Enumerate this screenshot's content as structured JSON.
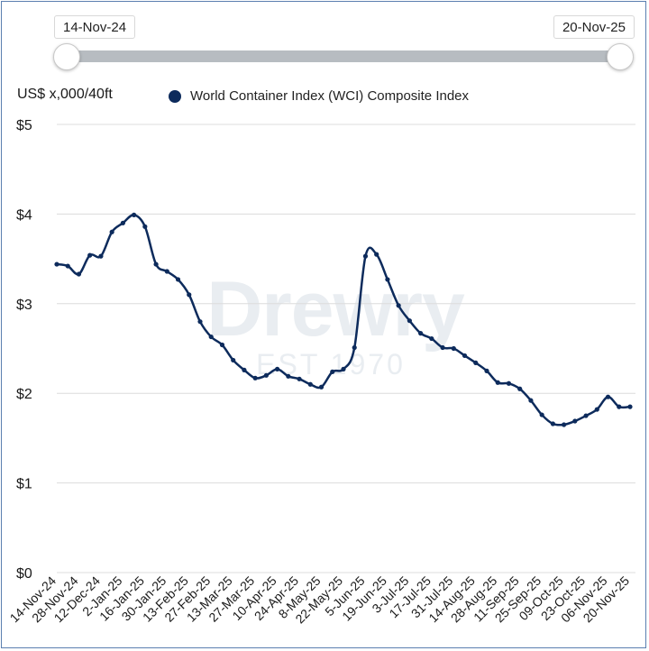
{
  "slider": {
    "start_label": "14-Nov-24",
    "end_label": "20-Nov-25",
    "start_fraction": 0,
    "end_fraction": 1
  },
  "watermark": {
    "brand": "Drewry",
    "sub": "EST 1970"
  },
  "colors": {
    "line": "#0d2b5c",
    "grid": "#dcdcdc",
    "track": "#b7bcc1"
  },
  "chart_data": {
    "type": "line",
    "title": "",
    "ylabel": "US$ x,000/40ft",
    "xlabel": "",
    "ylim": [
      0,
      5
    ],
    "y_ticks": [
      0,
      1,
      2,
      3,
      4,
      5
    ],
    "y_tick_labels": [
      "$0",
      "$1",
      "$2",
      "$3",
      "$4",
      "$5"
    ],
    "grid": true,
    "legend": "top",
    "x_tick_labels": [
      "14-Nov-24",
      "28-Nov-24",
      "12-Dec-24",
      "2-Jan-25",
      "16-Jan-25",
      "30-Jan-25",
      "13-Feb-25",
      "27-Feb-25",
      "13-Mar-25",
      "27-Mar-25",
      "10-Apr-25",
      "24-Apr-25",
      "8-May-25",
      "22-May-25",
      "5-Jun-25",
      "19-Jun-25",
      "3-Jul-25",
      "17-Jul-25",
      "31-Jul-25",
      "14-Aug-25",
      "28-Aug-25",
      "11-Sep-25",
      "25-Sep-25",
      "09-Oct-25",
      "23-Oct-25",
      "06-Nov-25",
      "20-Nov-25"
    ],
    "series": [
      {
        "name": "World Container Index (WCI) Composite Index",
        "values": [
          3.44,
          3.42,
          3.33,
          3.54,
          3.53,
          3.8,
          3.9,
          3.99,
          3.86,
          3.44,
          3.36,
          3.27,
          3.1,
          2.8,
          2.63,
          2.54,
          2.37,
          2.26,
          2.17,
          2.2,
          2.27,
          2.19,
          2.16,
          2.1,
          2.07,
          2.24,
          2.27,
          2.51,
          3.53,
          3.55,
          3.27,
          2.98,
          2.81,
          2.67,
          2.61,
          2.51,
          2.5,
          2.42,
          2.34,
          2.25,
          2.12,
          2.11,
          2.05,
          1.92,
          1.76,
          1.66,
          1.65,
          1.69,
          1.75,
          1.82,
          1.96,
          1.85,
          1.85
        ]
      }
    ]
  }
}
